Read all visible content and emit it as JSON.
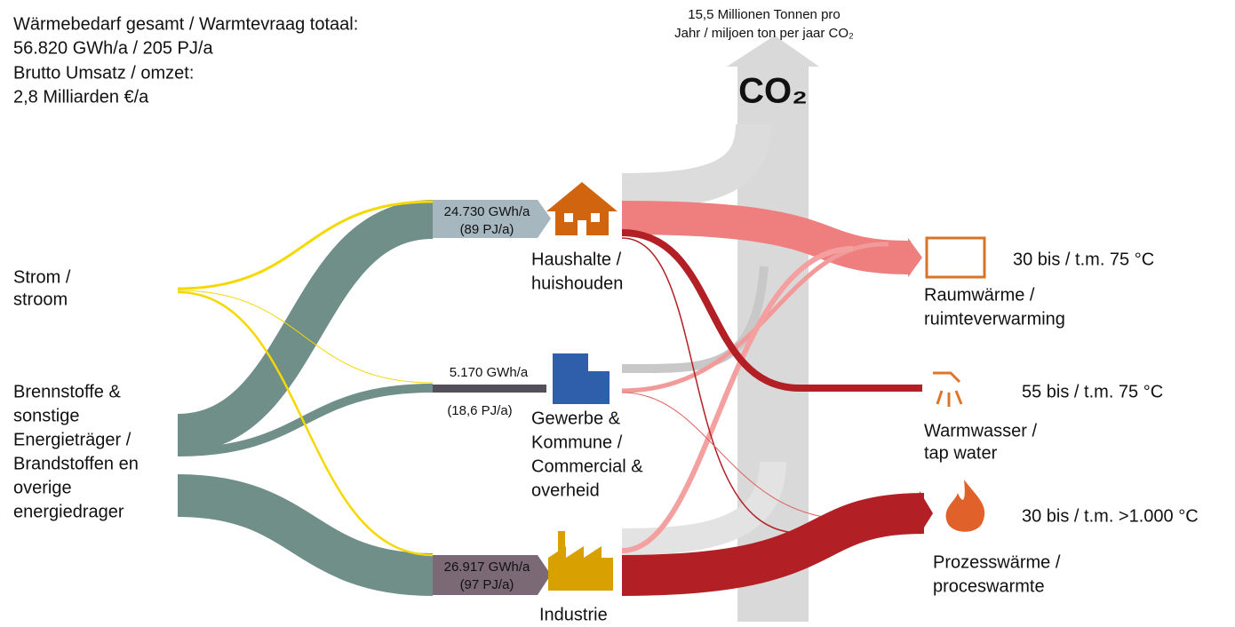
{
  "summary": {
    "lines": [
      "Wärmebedarf gesamt / Warmtevraag totaal:",
      "56.820 GWh/a / 205 PJ/a",
      "Brutto Umsatz / omzet:",
      "2,8 Milliarden €/a"
    ]
  },
  "co2": {
    "caption_lines": [
      "15,5 Millionen Tonnen pro",
      "Jahr / miljoen ton per jaar CO₂"
    ],
    "label": "CO₂"
  },
  "sources": [
    {
      "lines": [
        "Strom /",
        "stroom"
      ]
    },
    {
      "lines": [
        "Brennstoffe &",
        "sonstige",
        "Energieträger /",
        "Brandstoffen en",
        "overige",
        "energiedrager"
      ]
    }
  ],
  "sectors": [
    {
      "amount": "24.730 GWh/a",
      "pj": "(89 PJ/a)",
      "lines": [
        "Haushalte /",
        "huishouden"
      ]
    },
    {
      "amount": "5.170 GWh/a",
      "pj": "(18,6 PJ/a)",
      "lines": [
        "Gewerbe &",
        "Kommune /",
        "Commercial &",
        "overheid"
      ]
    },
    {
      "amount": "26.917 GWh/a",
      "pj": "(97 PJ/a)",
      "lines": [
        "Industrie"
      ]
    }
  ],
  "uses": [
    {
      "lines": [
        "Raumwärme /",
        "ruimteverwarming"
      ],
      "temperature": "30 bis / t.m. 75 °C"
    },
    {
      "lines": [
        "Warmwasser /",
        "tap water"
      ],
      "temperature": "55 bis / t.m. 75 °C"
    },
    {
      "lines": [
        "Prozesswärme /",
        "proceswarmte"
      ],
      "temperature": "30 bis / t.m. >1.000 °C"
    }
  ]
}
